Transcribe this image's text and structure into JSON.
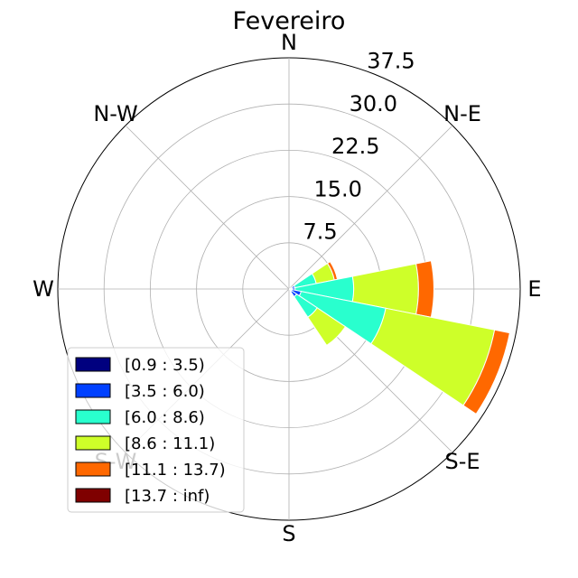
{
  "chart_data": {
    "type": "windrose",
    "title": "Fevereiro",
    "direction_labels": [
      "N",
      "N-E",
      "E",
      "S-E",
      "S",
      "S-W",
      "W",
      "N-W"
    ],
    "radial_ticks": [
      "7.5",
      "15.0",
      "22.5",
      "30.0",
      "37.5"
    ],
    "radial_tick_values": [
      7.5,
      15.0,
      22.5,
      30.0,
      37.5
    ],
    "rmax": 37.5,
    "sector_count": 16,
    "sectors": [
      {
        "direction_deg": 67.5,
        "cumulative": [
          0.5,
          1.0,
          4.5,
          7.5,
          8.0,
          8.0
        ]
      },
      {
        "direction_deg": 90.0,
        "cumulative": [
          0.5,
          1.0,
          10.5,
          21.0,
          23.5,
          23.5
        ]
      },
      {
        "direction_deg": 112.5,
        "cumulative": [
          0.5,
          2.0,
          16.0,
          34.0,
          36.5,
          36.5
        ]
      },
      {
        "direction_deg": 135.0,
        "cumulative": [
          0.5,
          1.5,
          5.5,
          11.0,
          11.0,
          11.0
        ]
      }
    ],
    "bins": [
      {
        "label": "[0.9 : 3.5)",
        "color": "#00007f"
      },
      {
        "label": "[3.5 : 6.0)",
        "color": "#0040ff"
      },
      {
        "label": "[6.0 : 8.6)",
        "color": "#29ffce"
      },
      {
        "label": "[8.6 : 11.1)",
        "color": "#ceff29"
      },
      {
        "label": "[11.1 : 13.7)",
        "color": "#ff6800"
      },
      {
        "label": "[13.7 : inf)",
        "color": "#7f0000"
      }
    ],
    "grid": true,
    "legend_position": "lower-left"
  }
}
